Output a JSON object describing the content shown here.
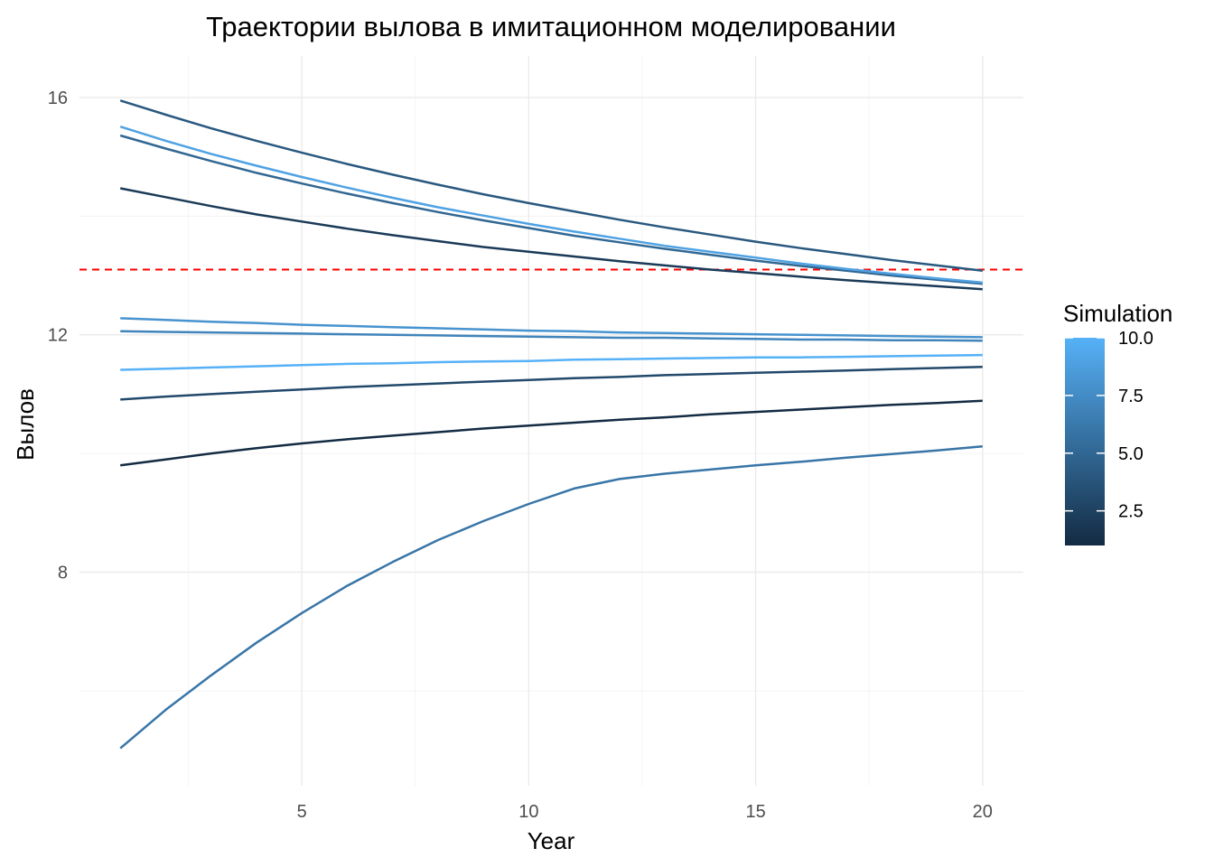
{
  "chart_data": {
    "type": "line",
    "title": "Траектории вылова в имитационном моделировании",
    "xlabel": "Year",
    "ylabel": "Вылов",
    "xlim": [
      0.1,
      20.9
    ],
    "ylim": [
      4.4,
      16.7
    ],
    "x_ticks": [
      5,
      10,
      15,
      20
    ],
    "y_ticks": [
      8,
      12,
      16
    ],
    "grid": true,
    "reference_line": {
      "y": 13.1,
      "color": "#ff0000",
      "style": "dashed"
    },
    "x": [
      1,
      2,
      3,
      4,
      5,
      6,
      7,
      8,
      9,
      10,
      11,
      12,
      13,
      14,
      15,
      16,
      17,
      18,
      19,
      20
    ],
    "series": [
      {
        "simulation": 1,
        "values": [
          9.8,
          9.9,
          10.0,
          10.09,
          10.17,
          10.24,
          10.3,
          10.36,
          10.42,
          10.47,
          10.52,
          10.57,
          10.61,
          10.66,
          10.7,
          10.74,
          10.78,
          10.82,
          10.85,
          10.89
        ]
      },
      {
        "simulation": 2,
        "values": [
          14.47,
          14.32,
          14.17,
          14.03,
          13.91,
          13.79,
          13.68,
          13.58,
          13.48,
          13.4,
          13.32,
          13.24,
          13.17,
          13.1,
          13.04,
          12.98,
          12.92,
          12.87,
          12.82,
          12.77
        ]
      },
      {
        "simulation": 3,
        "values": [
          10.91,
          10.96,
          11.0,
          11.04,
          11.08,
          11.12,
          11.15,
          11.18,
          11.21,
          11.24,
          11.27,
          11.29,
          11.32,
          11.34,
          11.36,
          11.38,
          11.4,
          11.42,
          11.44,
          11.46
        ]
      },
      {
        "simulation": 4,
        "values": [
          15.95,
          15.71,
          15.48,
          15.27,
          15.07,
          14.88,
          14.7,
          14.53,
          14.37,
          14.22,
          14.08,
          13.94,
          13.81,
          13.69,
          13.57,
          13.46,
          13.36,
          13.26,
          13.17,
          13.08
        ]
      },
      {
        "simulation": 5,
        "values": [
          15.36,
          15.14,
          14.93,
          14.73,
          14.55,
          14.38,
          14.22,
          14.07,
          13.93,
          13.8,
          13.67,
          13.56,
          13.45,
          13.35,
          13.25,
          13.16,
          13.08,
          13.0,
          12.93,
          12.86
        ]
      },
      {
        "simulation": 6,
        "values": [
          5.03,
          5.68,
          6.26,
          6.81,
          7.31,
          7.77,
          8.17,
          8.54,
          8.86,
          9.15,
          9.41,
          9.57,
          9.66,
          9.73,
          9.8,
          9.86,
          9.93,
          9.99,
          10.05,
          10.12
        ]
      },
      {
        "simulation": 7,
        "values": [
          12.06,
          12.05,
          12.04,
          12.03,
          12.02,
          12.01,
          12.0,
          11.99,
          11.98,
          11.97,
          11.96,
          11.95,
          11.95,
          11.94,
          11.93,
          11.92,
          11.92,
          11.91,
          11.91,
          11.9
        ]
      },
      {
        "simulation": 8,
        "values": [
          12.28,
          12.25,
          12.22,
          12.2,
          12.17,
          12.15,
          12.13,
          12.11,
          12.09,
          12.07,
          12.06,
          12.04,
          12.03,
          12.02,
          12.01,
          12.0,
          11.99,
          11.98,
          11.97,
          11.96
        ]
      },
      {
        "simulation": 9,
        "values": [
          15.51,
          15.27,
          15.05,
          14.85,
          14.66,
          14.48,
          14.31,
          14.15,
          14.01,
          13.87,
          13.74,
          13.62,
          13.5,
          13.4,
          13.3,
          13.2,
          13.11,
          13.03,
          12.95,
          12.88
        ]
      },
      {
        "simulation": 10,
        "values": [
          11.41,
          11.43,
          11.45,
          11.47,
          11.49,
          11.51,
          11.52,
          11.54,
          11.55,
          11.56,
          11.58,
          11.59,
          11.6,
          11.61,
          11.62,
          11.62,
          11.63,
          11.64,
          11.65,
          11.66
        ]
      }
    ],
    "color_scale": {
      "name": "Simulation",
      "min": 1,
      "max": 10,
      "low_color": "#132b43",
      "high_color": "#56b1f7",
      "ticks": [
        2.5,
        5.0,
        7.5,
        10.0
      ],
      "tick_labels": [
        "2.5",
        "5.0",
        "7.5",
        "10.0"
      ],
      "placement": "right"
    }
  }
}
